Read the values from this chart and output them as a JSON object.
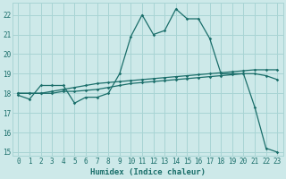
{
  "xlabel": "Humidex (Indice chaleur)",
  "xlim": [
    -0.5,
    23.5
  ],
  "ylim": [
    14.8,
    22.6
  ],
  "background_color": "#cde9e9",
  "grid_color": "#a8d4d4",
  "line_color": "#1a6e6a",
  "yticks": [
    15,
    16,
    17,
    18,
    19,
    20,
    21,
    22
  ],
  "xticks": [
    0,
    1,
    2,
    3,
    4,
    5,
    6,
    7,
    8,
    9,
    10,
    11,
    12,
    13,
    14,
    15,
    16,
    17,
    18,
    19,
    20,
    21,
    22,
    23
  ],
  "s1_x": [
    0,
    1,
    2,
    3,
    4,
    5,
    6,
    7,
    8,
    9,
    10,
    11,
    12,
    13,
    14,
    15,
    16,
    17,
    18,
    19,
    20,
    21,
    22,
    23
  ],
  "s1_y": [
    17.9,
    17.7,
    18.4,
    18.4,
    18.4,
    17.5,
    17.8,
    17.8,
    18.0,
    19.0,
    20.9,
    22.0,
    21.0,
    21.2,
    22.3,
    21.8,
    21.8,
    20.8,
    19.0,
    19.0,
    19.0,
    17.3,
    15.2,
    15.0
  ],
  "s2_x": [
    0,
    1,
    2,
    3,
    4,
    5,
    6,
    7,
    8,
    9,
    10,
    11,
    12,
    13,
    14,
    15,
    16,
    17,
    18,
    19,
    20,
    21,
    22,
    23
  ],
  "s2_y": [
    18.0,
    18.0,
    18.0,
    18.1,
    18.2,
    18.3,
    18.4,
    18.5,
    18.55,
    18.6,
    18.65,
    18.7,
    18.75,
    18.8,
    18.85,
    18.9,
    18.95,
    19.0,
    19.05,
    19.1,
    19.15,
    19.2,
    19.2,
    19.2
  ],
  "s3_x": [
    0,
    1,
    2,
    3,
    4,
    5,
    6,
    7,
    8,
    9,
    10,
    11,
    12,
    13,
    14,
    15,
    16,
    17,
    18,
    19,
    20,
    21,
    22,
    23
  ],
  "s3_y": [
    18.0,
    18.0,
    18.0,
    18.0,
    18.1,
    18.1,
    18.15,
    18.2,
    18.3,
    18.4,
    18.5,
    18.55,
    18.6,
    18.65,
    18.7,
    18.75,
    18.8,
    18.85,
    18.9,
    18.95,
    19.0,
    19.0,
    18.9,
    18.7
  ]
}
